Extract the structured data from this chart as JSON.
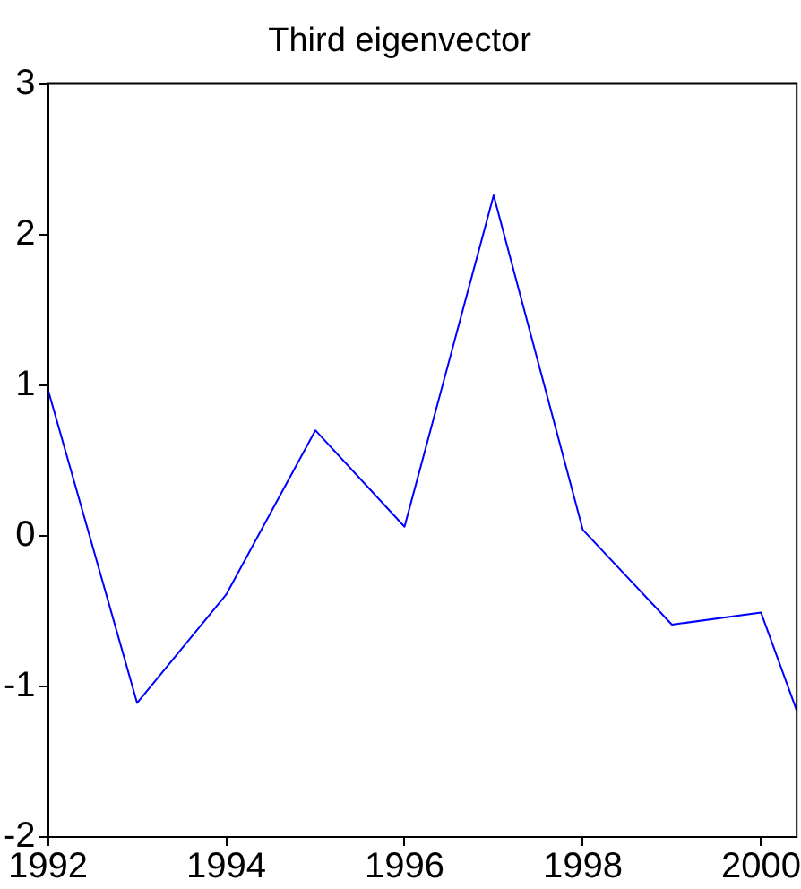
{
  "chart_data": {
    "type": "line",
    "title": "Third eigenvector",
    "x": [
      1992,
      1993,
      1994,
      1995,
      1996,
      1997,
      1998,
      1999,
      2000,
      2000.4
    ],
    "series": [
      {
        "color": "#0000ff",
        "values": [
          0.97,
          -1.11,
          -0.39,
          0.7,
          0.06,
          2.26,
          0.04,
          -0.59,
          -0.51,
          -1.16
        ]
      }
    ],
    "xlim": [
      1992,
      2000.4
    ],
    "xticks": [
      1992,
      1994,
      1996,
      1998,
      2000
    ],
    "ylim": [
      -2,
      3
    ],
    "yticks": [
      -2,
      -1,
      0,
      1,
      2,
      3
    ],
    "grid": false,
    "legend": false,
    "marker": "none",
    "line_style": "solid"
  }
}
